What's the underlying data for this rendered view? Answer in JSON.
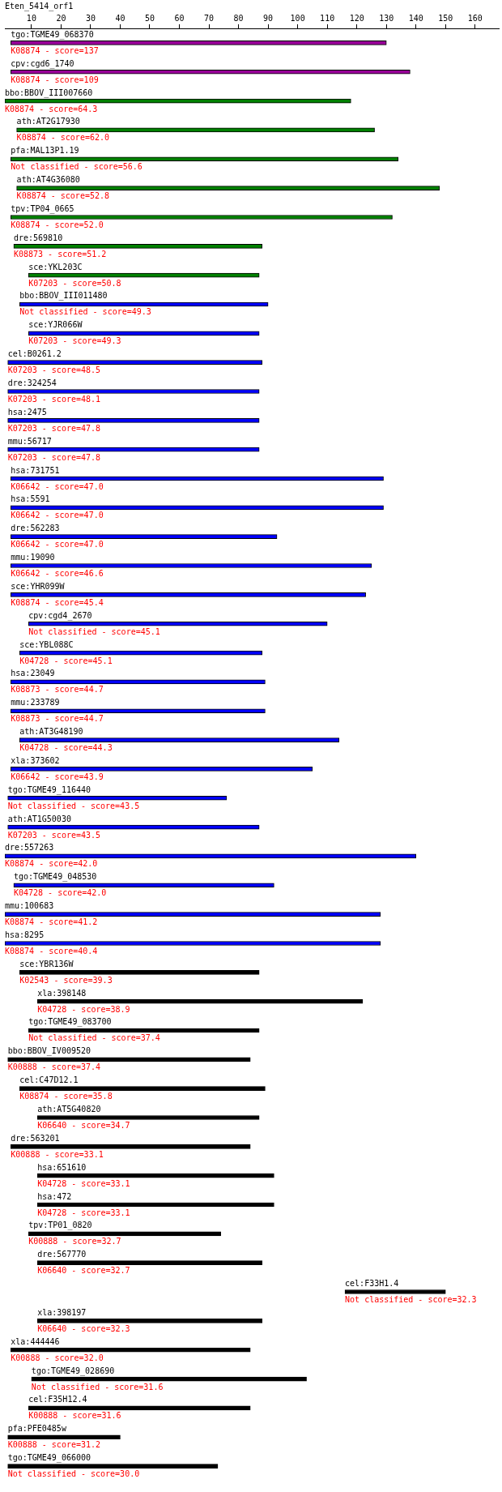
{
  "chart_data": {
    "type": "bar",
    "orientation": "horizontal",
    "title": "Eten_5414_orf1",
    "legend": false,
    "xlim": [
      1,
      168
    ],
    "xticks": [
      10,
      20,
      30,
      40,
      50,
      60,
      70,
      80,
      90,
      100,
      110,
      120,
      130,
      140,
      150,
      160
    ],
    "categories": [
      "tgo:TGME49_068370",
      "cpv:cgd6_1740",
      "bbo:BBOV_III007660",
      "ath:AT2G17930",
      "pfa:MAL13P1.19",
      "ath:AT4G36080",
      "tpv:TP04_0665",
      "dre:569810",
      "sce:YKL203C",
      "bbo:BBOV_III011480",
      "sce:YJR066W",
      "cel:B0261.2",
      "dre:324254",
      "hsa:2475",
      "mmu:56717",
      "hsa:731751",
      "hsa:5591",
      "dre:562283",
      "mmu:19090",
      "sce:YHR099W",
      "cpv:cgd4_2670",
      "sce:YBL088C",
      "hsa:23049",
      "mmu:233789",
      "ath:AT3G48190",
      "xla:373602",
      "tgo:TGME49_116440",
      "ath:AT1G50030",
      "dre:557263",
      "tgo:TGME49_048530",
      "mmu:100683",
      "hsa:8295",
      "sce:YBR136W",
      "xla:398148",
      "tgo:TGME49_083700",
      "bbo:BBOV_IV009520",
      "cel:C47D12.1",
      "ath:AT5G40820",
      "dre:563201",
      "hsa:651610",
      "hsa:472",
      "tpv:TP01_0820",
      "dre:567770",
      "cel:F33H1.4",
      "xla:398197",
      "xla:444446",
      "tgo:TGME49_028690",
      "cel:F35H12.4",
      "pfa:PFE0485w",
      "tgo:TGME49_066000"
    ],
    "base": [
      3,
      3,
      1,
      5,
      3,
      5,
      3,
      4,
      9,
      6,
      9,
      2,
      2,
      2,
      2,
      3,
      3,
      3,
      3,
      3,
      9,
      6,
      3,
      3,
      6,
      3,
      2,
      2,
      1,
      4,
      1,
      1,
      6,
      12,
      9,
      2,
      6,
      12,
      3,
      12,
      12,
      9,
      12,
      116,
      12,
      3,
      10,
      9,
      2,
      2
    ],
    "values": [
      127,
      135,
      117,
      121,
      131,
      143,
      129,
      84,
      78,
      84,
      78,
      86,
      85,
      85,
      85,
      126,
      126,
      90,
      122,
      120,
      101,
      82,
      86,
      86,
      108,
      102,
      74,
      85,
      139,
      88,
      127,
      127,
      81,
      110,
      78,
      82,
      83,
      75,
      81,
      80,
      80,
      65,
      76,
      34,
      76,
      81,
      93,
      75,
      38,
      71
    ],
    "colors": [
      "#990099",
      "#990099",
      "#008000",
      "#008000",
      "#008000",
      "#008000",
      "#008000",
      "#008000",
      "#008000",
      "#0000ff",
      "#0000ff",
      "#0000ff",
      "#0000ff",
      "#0000ff",
      "#0000ff",
      "#0000ff",
      "#0000ff",
      "#0000ff",
      "#0000ff",
      "#0000ff",
      "#0000ff",
      "#0000ff",
      "#0000ff",
      "#0000ff",
      "#0000ff",
      "#0000ff",
      "#0000ff",
      "#0000ff",
      "#0000ff",
      "#0000ff",
      "#0000ff",
      "#0000ff",
      "#000000",
      "#000000",
      "#000000",
      "#000000",
      "#000000",
      "#000000",
      "#000000",
      "#000000",
      "#000000",
      "#000000",
      "#000000",
      "#000000",
      "#000000",
      "#000000",
      "#000000",
      "#000000",
      "#000000",
      "#000000"
    ],
    "annotations": [
      {
        "text": "K08874 - score=137",
        "x": 3,
        "y": "tgo:TGME49_068370"
      },
      {
        "text": "K08874 - score=109",
        "x": 3,
        "y": "cpv:cgd6_1740"
      },
      {
        "text": "K08874 - score=64.3",
        "x": 1,
        "y": "bbo:BBOV_III007660"
      },
      {
        "text": "K08874 - score=62.0",
        "x": 5,
        "y": "ath:AT2G17930"
      },
      {
        "text": "Not classified - score=56.6",
        "x": 3,
        "y": "pfa:MAL13P1.19"
      },
      {
        "text": "K08874 - score=52.8",
        "x": 5,
        "y": "ath:AT4G36080"
      },
      {
        "text": "K08874 - score=52.0",
        "x": 3,
        "y": "tpv:TP04_0665"
      },
      {
        "text": "K08873 - score=51.2",
        "x": 4,
        "y": "dre:569810"
      },
      {
        "text": "K07203 - score=50.8",
        "x": 9,
        "y": "sce:YKL203C"
      },
      {
        "text": "Not classified - score=49.3",
        "x": 6,
        "y": "bbo:BBOV_III011480"
      },
      {
        "text": "K07203 - score=49.3",
        "x": 9,
        "y": "sce:YJR066W"
      },
      {
        "text": "K07203 - score=48.5",
        "x": 2,
        "y": "cel:B0261.2"
      },
      {
        "text": "K07203 - score=48.1",
        "x": 2,
        "y": "dre:324254"
      },
      {
        "text": "K07203 - score=47.8",
        "x": 2,
        "y": "hsa:2475"
      },
      {
        "text": "K07203 - score=47.8",
        "x": 2,
        "y": "mmu:56717"
      },
      {
        "text": "K06642 - score=47.0",
        "x": 3,
        "y": "hsa:731751"
      },
      {
        "text": "K06642 - score=47.0",
        "x": 3,
        "y": "hsa:5591"
      },
      {
        "text": "K06642 - score=47.0",
        "x": 3,
        "y": "dre:562283"
      },
      {
        "text": "K06642 - score=46.6",
        "x": 3,
        "y": "mmu:19090"
      },
      {
        "text": "K08874 - score=45.4",
        "x": 3,
        "y": "sce:YHR099W"
      },
      {
        "text": "Not classified - score=45.1",
        "x": 9,
        "y": "cpv:cgd4_2670"
      },
      {
        "text": "K04728 - score=45.1",
        "x": 6,
        "y": "sce:YBL088C"
      },
      {
        "text": "K08873 - score=44.7",
        "x": 3,
        "y": "hsa:23049"
      },
      {
        "text": "K08873 - score=44.7",
        "x": 3,
        "y": "mmu:233789"
      },
      {
        "text": "K04728 - score=44.3",
        "x": 6,
        "y": "ath:AT3G48190"
      },
      {
        "text": "K06642 - score=43.9",
        "x": 3,
        "y": "xla:373602"
      },
      {
        "text": "Not classified - score=43.5",
        "x": 2,
        "y": "tgo:TGME49_116440"
      },
      {
        "text": "K07203 - score=43.5",
        "x": 2,
        "y": "ath:AT1G50030"
      },
      {
        "text": "K08874 - score=42.0",
        "x": 1,
        "y": "dre:557263"
      },
      {
        "text": "K04728 - score=42.0",
        "x": 4,
        "y": "tgo:TGME49_048530"
      },
      {
        "text": "K08874 - score=41.2",
        "x": 1,
        "y": "mmu:100683"
      },
      {
        "text": "K08874 - score=40.4",
        "x": 1,
        "y": "hsa:8295"
      },
      {
        "text": "K02543 - score=39.3",
        "x": 6,
        "y": "sce:YBR136W"
      },
      {
        "text": "K04728 - score=38.9",
        "x": 12,
        "y": "xla:398148"
      },
      {
        "text": "Not classified - score=37.4",
        "x": 9,
        "y": "tgo:TGME49_083700"
      },
      {
        "text": "K00888 - score=37.4",
        "x": 2,
        "y": "bbo:BBOV_IV009520"
      },
      {
        "text": "K08874 - score=35.8",
        "x": 6,
        "y": "cel:C47D12.1"
      },
      {
        "text": "K06640 - score=34.7",
        "x": 12,
        "y": "ath:AT5G40820"
      },
      {
        "text": "K00888 - score=33.1",
        "x": 3,
        "y": "dre:563201"
      },
      {
        "text": "K04728 - score=33.1",
        "x": 12,
        "y": "hsa:651610"
      },
      {
        "text": "K04728 - score=33.1",
        "x": 12,
        "y": "hsa:472"
      },
      {
        "text": "K00888 - score=32.7",
        "x": 9,
        "y": "tpv:TP01_0820"
      },
      {
        "text": "K06640 - score=32.7",
        "x": 12,
        "y": "dre:567770"
      },
      {
        "text": "Not classified - score=32.3",
        "x": 116,
        "y": "cel:F33H1.4"
      },
      {
        "text": "K06640 - score=32.3",
        "x": 12,
        "y": "xla:398197"
      },
      {
        "text": "K00888 - score=32.0",
        "x": 3,
        "y": "xla:444446"
      },
      {
        "text": "Not classified - score=31.6",
        "x": 10,
        "y": "tgo:TGME49_028690"
      },
      {
        "text": "K00888 - score=31.6",
        "x": 9,
        "y": "cel:F35H12.4"
      },
      {
        "text": "K00888 - score=31.2",
        "x": 2,
        "y": "pfa:PFE0485w"
      },
      {
        "text": "Not classified - score=30.0",
        "x": 2,
        "y": "tgo:TGME49_066000"
      }
    ]
  }
}
